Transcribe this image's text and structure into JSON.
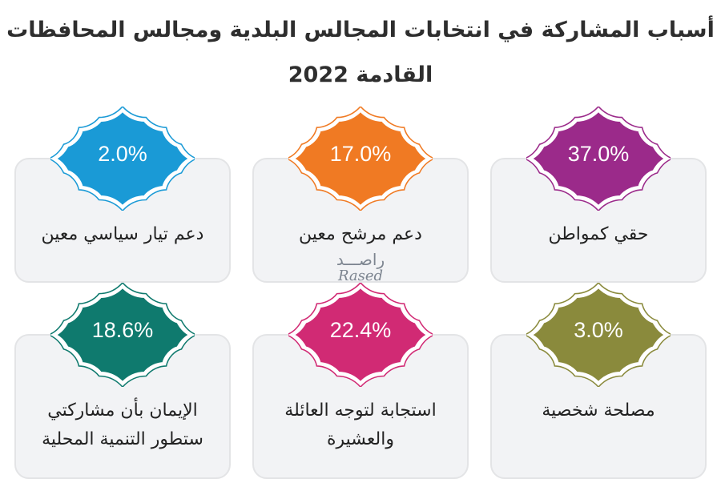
{
  "title": "أسباب المشاركة في انتخابات المجالس البلدية ومجالس المحافظات القادمة 2022",
  "watermark": {
    "arabic": "راصـــد",
    "latin": "Rased"
  },
  "chart_data": {
    "type": "infographic-cards",
    "title": "أسباب المشاركة في انتخابات المجالس البلدية ومجالس المحافظات القادمة 2022",
    "unit": "%",
    "items": [
      {
        "label": "حقي كمواطن",
        "value": 37.0,
        "display": "37.0%",
        "color": "#9b2a8a"
      },
      {
        "label": "دعم مرشح معين",
        "value": 17.0,
        "display": "17.0%",
        "color": "#f07a23"
      },
      {
        "label": "دعم تيار سياسي معين",
        "value": 2.0,
        "display": "2.0%",
        "color": "#1a9ad6"
      },
      {
        "label": "مصلحة شخصية",
        "value": 3.0,
        "display": "3.0%",
        "color": "#8a8a3c"
      },
      {
        "label": "استجابة لتوجه العائلة والعشيرة",
        "value": 22.4,
        "display": "22.4%",
        "color": "#d12a74"
      },
      {
        "label": "الإيمان بأن مشاركتي ستطور التنمية المحلية",
        "value": 18.6,
        "display": "18.6%",
        "color": "#0f7a6e"
      }
    ]
  }
}
